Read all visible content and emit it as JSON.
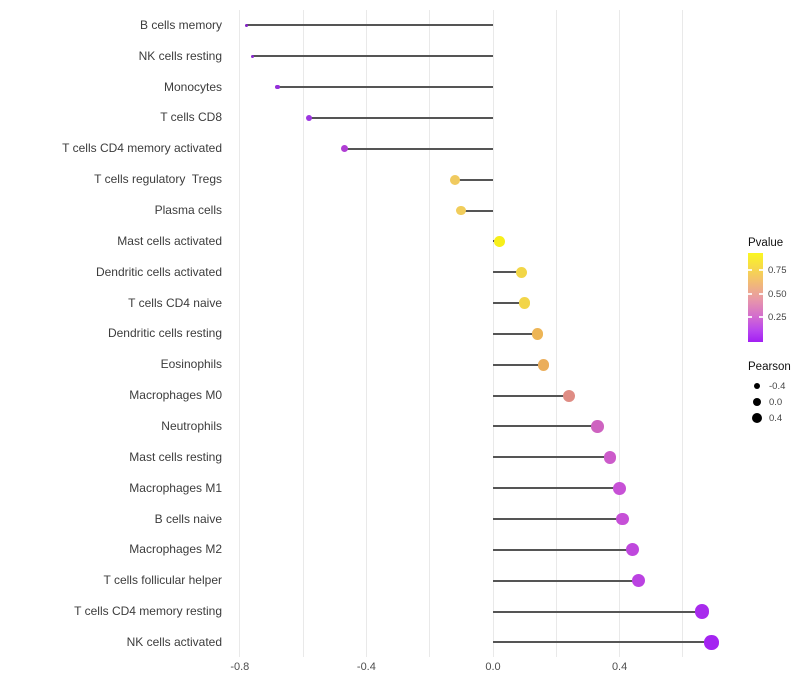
{
  "chart_data": {
    "type": "scatter",
    "variant": "lollipop-horizontal",
    "title": "",
    "xlabel": "",
    "ylabel": "",
    "xlim": [
      -0.85,
      0.77
    ],
    "x_tick_values": [
      -0.8,
      -0.4,
      0.0,
      0.4
    ],
    "x_tick_labels": [
      "-0.8",
      "-0.4",
      "0.0",
      "0.4"
    ],
    "grid_tick_values": [
      -0.8,
      -0.6,
      -0.4,
      -0.2,
      0.0,
      0.2,
      0.4,
      0.6
    ],
    "grid": "vertical-only",
    "background_color": "#ffffff",
    "gridline_color": "#e9e9e9",
    "stem_color": "#555555",
    "points": [
      {
        "label": "B cells memory",
        "pearson": -0.78,
        "color": "#8524C6"
      },
      {
        "label": "NK cells resting",
        "pearson": -0.76,
        "color": "#8C2BD0"
      },
      {
        "label": "Monocytes",
        "pearson": -0.68,
        "color": "#9530DA"
      },
      {
        "label": "T cells CD8",
        "pearson": -0.58,
        "color": "#9D36E0"
      },
      {
        "label": "T cells CD4 memory activated",
        "pearson": -0.47,
        "color": "#B03ED4"
      },
      {
        "label": "T cells regulatory  Tregs",
        "pearson": -0.12,
        "color": "#F0CA5F"
      },
      {
        "label": "Plasma cells",
        "pearson": -0.1,
        "color": "#F1CD5B"
      },
      {
        "label": "Mast cells activated",
        "pearson": 0.02,
        "color": "#F7EF1A"
      },
      {
        "label": "Dendritic cells activated",
        "pearson": 0.09,
        "color": "#F2D647"
      },
      {
        "label": "T cells CD4 naive",
        "pearson": 0.1,
        "color": "#F2D549"
      },
      {
        "label": "Dendritic cells resting",
        "pearson": 0.14,
        "color": "#EDB556"
      },
      {
        "label": "Eosinophils",
        "pearson": 0.16,
        "color": "#EBAE5B"
      },
      {
        "label": "Macrophages M0",
        "pearson": 0.24,
        "color": "#DF8C84"
      },
      {
        "label": "Neutrophils",
        "pearson": 0.33,
        "color": "#CE63C0"
      },
      {
        "label": "Mast cells resting",
        "pearson": 0.37,
        "color": "#CC5BCA"
      },
      {
        "label": "Macrophages M1",
        "pearson": 0.4,
        "color": "#C751D6"
      },
      {
        "label": "B cells naive",
        "pearson": 0.41,
        "color": "#C650D7"
      },
      {
        "label": "Macrophages M2",
        "pearson": 0.44,
        "color": "#BF48DD"
      },
      {
        "label": "T cells follicular helper",
        "pearson": 0.46,
        "color": "#BB42E2"
      },
      {
        "label": "T cells CD4 memory resting",
        "pearson": 0.66,
        "color": "#A82BED"
      },
      {
        "label": "NK cells activated",
        "pearson": 0.69,
        "color": "#A424F1"
      }
    ],
    "legends": {
      "color": {
        "title": "Pvalue",
        "tick_labels": [
          "0.75",
          "0.50",
          "0.25"
        ],
        "gradient_stops": [
          {
            "pos": 0,
            "color": "#FAF721"
          },
          {
            "pos": 28,
            "color": "#F4C566"
          },
          {
            "pos": 52,
            "color": "#E898A8"
          },
          {
            "pos": 72,
            "color": "#D26BD0"
          },
          {
            "pos": 88,
            "color": "#B743F0"
          },
          {
            "pos": 100,
            "color": "#A21FF2"
          }
        ]
      },
      "size": {
        "title": "Pearson",
        "entries": [
          {
            "label": "-0.4",
            "diameter": 6.5
          },
          {
            "label": "0.0",
            "diameter": 8.5
          },
          {
            "label": "0.4",
            "diameter": 10
          }
        ]
      }
    }
  }
}
